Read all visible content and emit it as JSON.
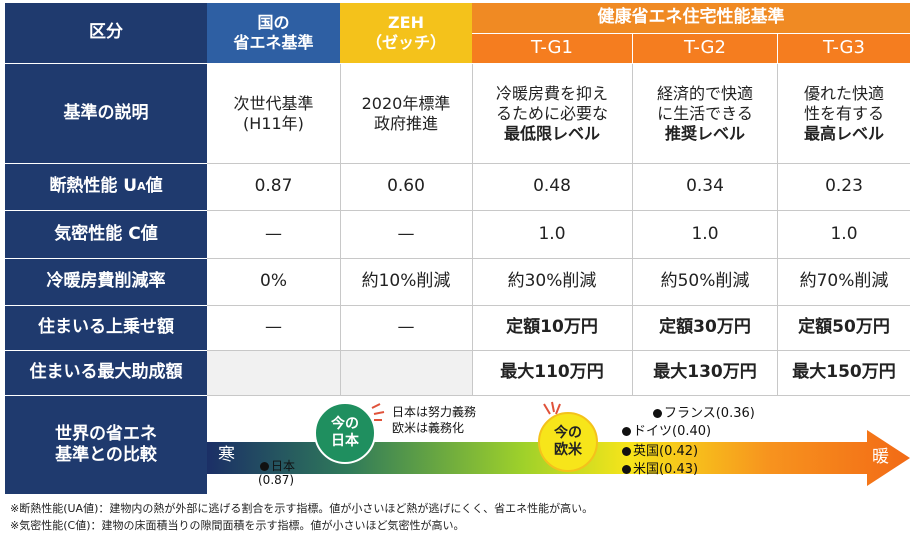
{
  "table": {
    "header_kubun": "区分",
    "kuni_line1": "国の",
    "kuni_line2": "省エネ基準",
    "zeh_line1": "ZEH",
    "zeh_line2": "（ゼッチ）",
    "kk_title": "健康省エネ住宅性能基準",
    "tg1": "T-G1",
    "tg2": "T-G2",
    "tg3": "T-G3",
    "row_labels": {
      "desc": "基準の説明",
      "ua": "断熱性能 U",
      "ua_sub": "A",
      "ua_suffix": "値",
      "c": "気密性能 C値",
      "reduction": "冷暖房費削減率",
      "uwanose": "住まいる上乗せ額",
      "max": "住まいる最大助成額",
      "world_line1": "世界の省エネ",
      "world_line2": "基準との比較"
    },
    "desc": {
      "kuni_1": "次世代基準",
      "kuni_2": "(H11年)",
      "zeh_1": "2020年標準",
      "zeh_2": "政府推進",
      "g1_1": "冷暖房費を抑え",
      "g1_2": "るために必要な",
      "g1_3": "最低限レベル",
      "g2_1": "経済的で快適",
      "g2_2": "に生活できる",
      "g2_3": "推奨レベル",
      "g3_1": "優れた快適",
      "g3_2": "性を有する",
      "g3_3": "最高レベル"
    },
    "ua": [
      "0.87",
      "0.60",
      "0.48",
      "0.34",
      "0.23"
    ],
    "c": [
      "—",
      "—",
      "1.0",
      "1.0",
      "1.0"
    ],
    "reduction": [
      "0%",
      "約10%削減",
      "約30%削減",
      "約50%削減",
      "約70%削減"
    ],
    "uwanose": [
      "—",
      "—",
      "定額10万円",
      "定額30万円",
      "定額50万円"
    ],
    "max": [
      "最大110万円",
      "最大130万円",
      "最大150万円"
    ]
  },
  "comparison": {
    "cold": "寒",
    "warm": "暖",
    "japan_circle_1": "今の",
    "japan_circle_2": "日本",
    "west_circle_1": "今の",
    "west_circle_2": "欧米",
    "note_1": "日本は努力義務",
    "note_2": "欧米は義務化",
    "japan_label": "日本",
    "japan_value": "(0.87)",
    "france": "フランス(0.36)",
    "germany": "ドイツ(0.40)",
    "uk": "英国(0.42)",
    "us": "米国(0.43)"
  },
  "footnotes": [
    "※断熱性能(UA値)：建物内の熱が外部に逃げる割合を示す指標。値が小さいほど熱が逃げにくく、省エネ性能が高い。",
    "※気密性能(C値)：建物の床面積当りの隙間面積を示す指標。値が小さいほど気密性が高い。"
  ],
  "colors": {
    "navy": "#1f3a6e",
    "blue": "#2e5fa3",
    "yellow": "#f4c21b",
    "orange": "#f57d1f",
    "green_circle": "#1f8f5f"
  }
}
